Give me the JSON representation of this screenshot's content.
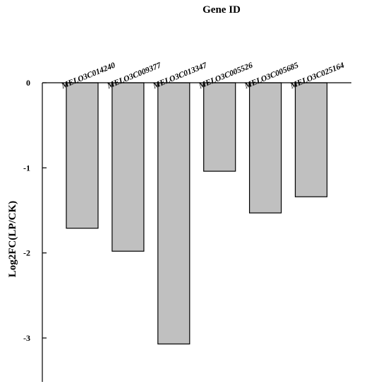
{
  "chart_data": {
    "type": "bar",
    "title": "Gene ID",
    "xlabel": "",
    "ylabel": "Log2FC(LP/CK)",
    "categories": [
      "MELO3C014240",
      "MELO3C009377",
      "MELO3C013347",
      "MELO3C005526",
      "MELO3C005685",
      "MELO3C025164"
    ],
    "values": [
      -1.71,
      -1.98,
      -3.07,
      -1.04,
      -1.53,
      -1.34
    ],
    "ylim": [
      -3.5,
      0
    ],
    "yticks": [
      0,
      -1,
      -2,
      -3
    ],
    "ytick_labels": [
      "0",
      "-1",
      "-2",
      "-3"
    ],
    "x_axis_position": "top",
    "grid": false,
    "colors": {
      "bar_fill": "#c0c0c0",
      "bar_stroke": "#000000"
    }
  }
}
